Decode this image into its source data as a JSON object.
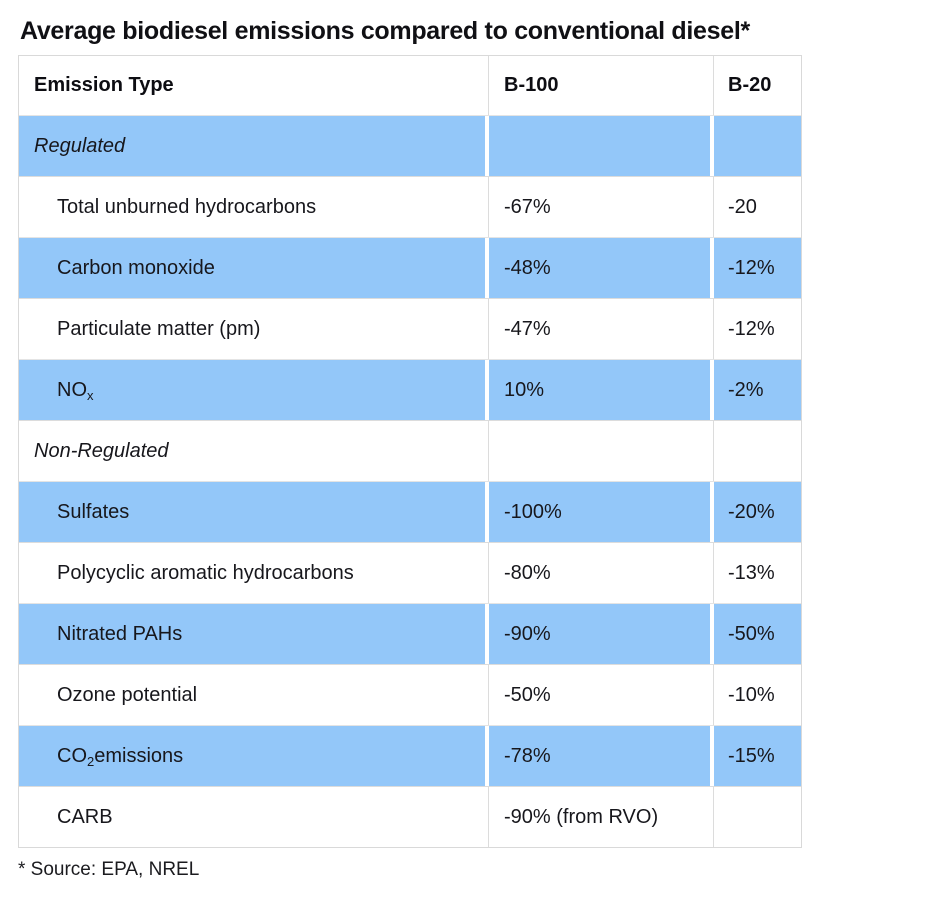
{
  "title": "Average biodiesel emissions compared to conventional diesel*",
  "footnote": "* Source: EPA, NREL",
  "colors": {
    "row_blue": "#93c7f9",
    "border": "#dcdcdc",
    "text": "#17171c",
    "background": "#ffffff"
  },
  "table": {
    "columns": [
      "Emission Type",
      "B-100",
      "B-20"
    ],
    "rows": [
      {
        "type": "category",
        "shade": "blue",
        "label": [
          [
            "Regulated"
          ]
        ],
        "b100": "",
        "b20": ""
      },
      {
        "type": "item",
        "shade": "white",
        "label": [
          [
            "Total unburned hydrocarbons"
          ]
        ],
        "b100": "-67%",
        "b20": "-20"
      },
      {
        "type": "item",
        "shade": "blue",
        "label": [
          [
            "Carbon monoxide"
          ]
        ],
        "b100": "-48%",
        "b20": "-12%"
      },
      {
        "type": "item",
        "shade": "white",
        "label": [
          [
            "Particulate matter (pm)"
          ]
        ],
        "b100": "-47%",
        "b20": "-12%"
      },
      {
        "type": "item",
        "shade": "blue",
        "label": [
          [
            "NO"
          ],
          [
            "x",
            "sub"
          ]
        ],
        "b100": "10%",
        "b20": "-2%"
      },
      {
        "type": "category",
        "shade": "white",
        "label": [
          [
            "Non-Regulated"
          ]
        ],
        "b100": "",
        "b20": ""
      },
      {
        "type": "item",
        "shade": "blue",
        "label": [
          [
            "Sulfates"
          ]
        ],
        "b100": "-100%",
        "b20": "-20%"
      },
      {
        "type": "item",
        "shade": "white",
        "label": [
          [
            "Polycyclic aromatic hydrocarbons"
          ]
        ],
        "b100": "-80%",
        "b20": "-13%"
      },
      {
        "type": "item",
        "shade": "blue",
        "label": [
          [
            "Nitrated PAHs"
          ]
        ],
        "b100": "-90%",
        "b20": "-50%"
      },
      {
        "type": "item",
        "shade": "white",
        "label": [
          [
            "Ozone potential"
          ]
        ],
        "b100": "-50%",
        "b20": "-10%"
      },
      {
        "type": "item",
        "shade": "blue",
        "label": [
          [
            "CO"
          ],
          [
            "2",
            "sub"
          ],
          [
            " emissions"
          ]
        ],
        "b100": "-78%",
        "b20": "-15%"
      },
      {
        "type": "item",
        "shade": "white",
        "label": [
          [
            "CARB"
          ]
        ],
        "b100": "-90% (from RVO)",
        "b20": ""
      }
    ]
  },
  "chart_data": {
    "type": "table",
    "title": "Average biodiesel emissions compared to conventional diesel*",
    "columns": [
      "Emission Type",
      "B-100",
      "B-20"
    ],
    "rows": [
      [
        "Regulated",
        "",
        ""
      ],
      [
        "Total unburned hydrocarbons",
        "-67%",
        "-20"
      ],
      [
        "Carbon monoxide",
        "-48%",
        "-12%"
      ],
      [
        "Particulate matter (pm)",
        "-47%",
        "-12%"
      ],
      [
        "NOx",
        "10%",
        "-2%"
      ],
      [
        "Non-Regulated",
        "",
        ""
      ],
      [
        "Sulfates",
        "-100%",
        "-20%"
      ],
      [
        "Polycyclic aromatic hydrocarbons",
        "-80%",
        "-13%"
      ],
      [
        "Nitrated PAHs",
        "-90%",
        "-50%"
      ],
      [
        "Ozone potential",
        "-50%",
        "-10%"
      ],
      [
        "CO2 emissions",
        "-78%",
        "-15%"
      ],
      [
        "CARB",
        "-90% (from RVO)",
        ""
      ]
    ],
    "annotations": [
      "* Source: EPA, NREL"
    ],
    "layout": {
      "row_shading": "alternating light blue / white",
      "category_rows_italic": true
    }
  }
}
